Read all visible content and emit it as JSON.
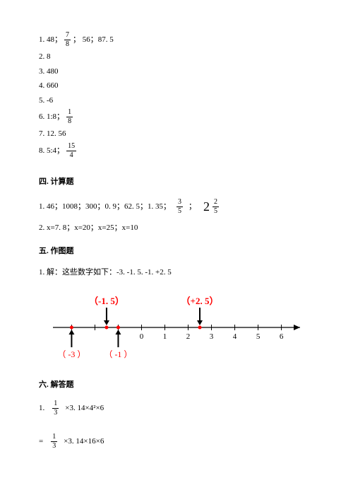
{
  "answers": {
    "l1a": "1. 48；",
    "l1_frac_n": "7",
    "l1_frac_d": "8",
    "l1b": "； 56；87. 5",
    "l2": "2. 8",
    "l3": "3. 480",
    "l4": "4. 660",
    "l5": "5. -6",
    "l6a": "6. 1:8；",
    "l6_frac_n": "1",
    "l6_frac_d": "8",
    "l7": "7. 12. 56",
    "l8a": "8. 5:4；",
    "l8_frac_n": "15",
    "l8_frac_d": "4"
  },
  "sec4": {
    "title": "四. 计算题",
    "l1a": "1. 46；1008；300；0. 9；62. 5；1. 35；",
    "l1_frac_n": "3",
    "l1_frac_d": "5",
    "l1b": "；",
    "l1_mixed_whole": "2",
    "l1_mixed_n": "2",
    "l1_mixed_d": "5",
    "l2": "2. x=7. 8；x=20；x=25；x=10"
  },
  "sec5": {
    "title": "五. 作图题",
    "l1": "1. 解：这些数字如下：-3. -1. 5. -1. +2. 5",
    "numberline": {
      "x_start": -3.8,
      "x_end": 6.8,
      "ticks": [
        -3,
        -2,
        -1,
        0,
        1,
        2,
        3,
        4,
        5,
        6
      ],
      "labels_black": [
        {
          "x": 0,
          "text": "0"
        },
        {
          "x": 1,
          "text": "1"
        },
        {
          "x": 2,
          "text": "2"
        },
        {
          "x": 3,
          "text": "3"
        },
        {
          "x": 4,
          "text": "4"
        },
        {
          "x": 5,
          "text": "5"
        },
        {
          "x": 6,
          "text": "6"
        }
      ],
      "points_top": [
        {
          "x": -1.5,
          "label": "（-1. 5）"
        },
        {
          "x": 2.5,
          "label": "（+2. 5）"
        }
      ],
      "points_bottom": [
        {
          "x": -3,
          "label": "（ -3 ）"
        },
        {
          "x": -1,
          "label": "（ -1 ）"
        }
      ],
      "line_color": "#000000",
      "point_color": "#ff0000",
      "arrow_color": "#000000"
    }
  },
  "sec6": {
    "title": "六. 解答题",
    "l1a": "1.",
    "l1_frac_n": "1",
    "l1_frac_d": "3",
    "l1b": "×3. 14×4²×6",
    "l2a": "=",
    "l2_frac_n": "1",
    "l2_frac_d": "3",
    "l2b": "×3. 14×16×6"
  }
}
